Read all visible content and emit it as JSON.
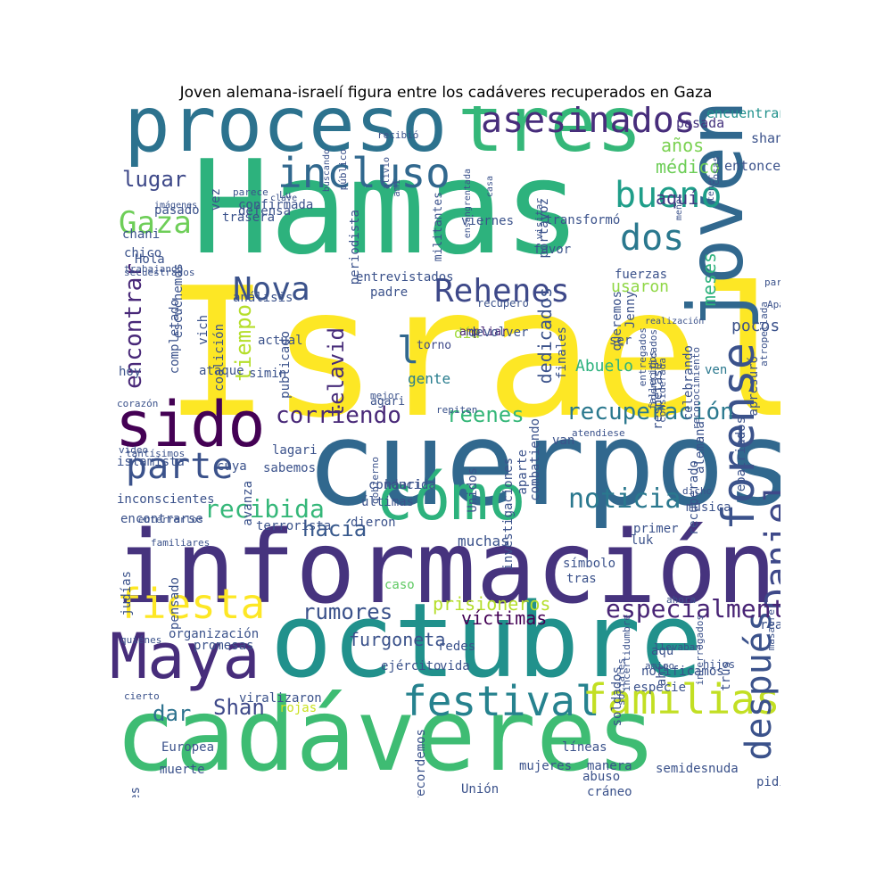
{
  "title": "Joven alemana-israelí figura entre los cadáveres recuperados en Gaza",
  "words": [
    {
      "text": "Israel",
      "color": "#fde725"
    },
    {
      "text": "Hamas",
      "color": "#2db27d"
    },
    {
      "text": "cuerpos",
      "color": "#31688e"
    },
    {
      "text": "información",
      "color": "#46337e"
    },
    {
      "text": "octubre",
      "color": "#21918c"
    },
    {
      "text": "cadáveres",
      "color": "#3ebc73"
    },
    {
      "text": "proceso",
      "color": "#2c728e"
    },
    {
      "text": "tres",
      "color": "#35b779"
    },
    {
      "text": "joven",
      "color": "#31688e"
    },
    {
      "text": "Maya",
      "color": "#472d7b"
    },
    {
      "text": "sido",
      "color": "#440154"
    },
    {
      "text": "cómo",
      "color": "#2db27d"
    },
    {
      "text": "fiesta",
      "color": "#fde725"
    },
    {
      "text": "forense",
      "color": "#3b528b"
    },
    {
      "text": "Daniel",
      "color": "#3e4989"
    },
    {
      "text": "asesinados",
      "color": "#472d7b"
    },
    {
      "text": "incluso",
      "color": "#31688e"
    },
    {
      "text": "festival",
      "color": "#26828e"
    },
    {
      "text": "familias",
      "color": "#c2df23"
    },
    {
      "text": "después",
      "color": "#3b528b"
    },
    {
      "text": "parte",
      "color": "#3b528b"
    },
    {
      "text": "bueno",
      "color": "#1f9e89"
    },
    {
      "text": "dos",
      "color": "#2a788e"
    },
    {
      "text": "Rehenes",
      "color": "#3e4989"
    },
    {
      "text": "Nova",
      "color": "#3b528b"
    },
    {
      "text": "Gaza",
      "color": "#6ece58"
    },
    {
      "text": "noticia",
      "color": "#2a788e"
    },
    {
      "text": "recibida",
      "color": "#35b779"
    },
    {
      "text": "especialmente",
      "color": "#482475"
    },
    {
      "text": "recuperación",
      "color": "#2a788e"
    },
    {
      "text": "corriendo",
      "color": "#482878"
    },
    {
      "text": "encontrar",
      "color": "#482878"
    },
    {
      "text": "lugar",
      "color": "#3e4989"
    },
    {
      "text": "hacía",
      "color": "#38598c"
    },
    {
      "text": "reenes",
      "color": "#35b779"
    },
    {
      "text": "tiempo",
      "color": "#b5de2b"
    },
    {
      "text": "telavid",
      "color": "#472c7a"
    },
    {
      "text": "rumores",
      "color": "#3b528b"
    },
    {
      "text": "Shan",
      "color": "#3e4989"
    },
    {
      "text": "dar",
      "color": "#2c728e"
    },
    {
      "text": "l",
      "color": "#31688e"
    },
    {
      "text": "prisioneros",
      "color": "#b5de2b"
    },
    {
      "text": "víctimas",
      "color": "#440154"
    },
    {
      "text": "furgoneta",
      "color": "#3b528b"
    },
    {
      "text": "dedicados",
      "color": "#3b528b"
    },
    {
      "text": "aquí",
      "color": "#443983"
    },
    {
      "text": "médico",
      "color": "#6ece58"
    },
    {
      "text": "años",
      "color": "#7ad151"
    },
    {
      "text": "pasada",
      "color": "#46337e"
    },
    {
      "text": "encuentran",
      "color": "#21918c"
    },
    {
      "text": "shani",
      "color": "#3b528b"
    },
    {
      "text": "entonces",
      "color": "#3b528b"
    },
    {
      "text": "Abuelo",
      "color": "#2db27d"
    },
    {
      "text": "gente",
      "color": "#287d8e"
    },
    {
      "text": "día",
      "color": "#a0da39"
    },
    {
      "text": "torno",
      "color": "#3e4989"
    },
    {
      "text": "ampliar",
      "color": "#482475"
    },
    {
      "text": "meses",
      "color": "#2db27d"
    },
    {
      "text": "usaron",
      "color": "#8fd744"
    },
    {
      "text": "fuerzas",
      "color": "#3b528b"
    },
    {
      "text": "pocos",
      "color": "#3b528b"
    },
    {
      "text": "ven",
      "color": "#2a788e"
    },
    {
      "text": "organización",
      "color": "#3b528b"
    },
    {
      "text": "promesas",
      "color": "#3b528b"
    },
    {
      "text": "viralizaron",
      "color": "#3b528b"
    },
    {
      "text": "rojas",
      "color": "#cae11f"
    },
    {
      "text": "muchas",
      "color": "#3b528b"
    },
    {
      "text": "luk",
      "color": "#3b528b"
    },
    {
      "text": "tras",
      "color": "#3b528b"
    },
    {
      "text": "caso",
      "color": "#5ec962"
    },
    {
      "text": "primer",
      "color": "#3b528b"
    },
    {
      "text": "símbolo",
      "color": "#3b528b"
    },
    {
      "text": "música",
      "color": "#3b528b"
    },
    {
      "text": "redes",
      "color": "#3b528b"
    },
    {
      "text": "ejército",
      "color": "#3b528b"
    },
    {
      "text": "vida",
      "color": "#3b528b"
    },
    {
      "text": "aqu",
      "color": "#3b528b"
    },
    {
      "text": "ahí",
      "color": "#3b528b"
    },
    {
      "text": "amigo",
      "color": "#3b528b"
    },
    {
      "text": "especie",
      "color": "#3b528b"
    },
    {
      "text": "realidad",
      "color": "#3b528b"
    },
    {
      "text": "hijos",
      "color": "#3b528b"
    },
    {
      "text": "líneas",
      "color": "#3b528b"
    },
    {
      "text": "mujeres",
      "color": "#3b528b"
    },
    {
      "text": "manera",
      "color": "#3b528b"
    },
    {
      "text": "abuso",
      "color": "#3b528b"
    },
    {
      "text": "cráneo",
      "color": "#3b528b"
    },
    {
      "text": "semidesnuda",
      "color": "#3b528b"
    },
    {
      "text": "Unión",
      "color": "#3b528b"
    },
    {
      "text": "pidió",
      "color": "#3b528b"
    },
    {
      "text": "Europea",
      "color": "#3b528b"
    },
    {
      "text": "muerte",
      "color": "#3b528b"
    },
    {
      "text": "informaciones",
      "color": "#3b528b"
    },
    {
      "text": "recordemos",
      "color": "#3b528b"
    },
    {
      "text": "profesionales",
      "color": "#3b528b"
    },
    {
      "text": "cierto",
      "color": "#3b528b"
    },
    {
      "text": "quiénes",
      "color": "#3b528b"
    },
    {
      "text": "sabemos",
      "color": "#3b528b"
    },
    {
      "text": "lagari",
      "color": "#3b528b"
    },
    {
      "text": "haari",
      "color": "#3b528b"
    },
    {
      "text": "conducida",
      "color": "#3b528b"
    },
    {
      "text": "últimas",
      "color": "#3b528b"
    },
    {
      "text": "dieron",
      "color": "#3b528b"
    },
    {
      "text": "terrorista",
      "color": "#3b528b"
    },
    {
      "text": "pensado",
      "color": "#3b528b"
    },
    {
      "text": "judías",
      "color": "#3b528b"
    },
    {
      "text": "familiares",
      "color": "#3b528b"
    },
    {
      "text": "encontrarse",
      "color": "#3b528b"
    },
    {
      "text": "enterrarlos",
      "color": "#3b528b"
    },
    {
      "text": "inconscientes",
      "color": "#3b528b"
    },
    {
      "text": "islamista",
      "color": "#3b528b"
    },
    {
      "text": "tantísimos",
      "color": "#3b528b"
    },
    {
      "text": "video",
      "color": "#3b528b"
    },
    {
      "text": "cuya",
      "color": "#3b528b"
    },
    {
      "text": "avanza",
      "color": "#3b528b"
    },
    {
      "text": "gobierno",
      "color": "#3b528b"
    },
    {
      "text": "agari",
      "color": "#3b528b"
    },
    {
      "text": "repiten",
      "color": "#3b528b"
    },
    {
      "text": "mejor",
      "color": "#3b528b"
    },
    {
      "text": "corazón",
      "color": "#3b528b"
    },
    {
      "text": "hoy",
      "color": "#3b528b"
    },
    {
      "text": "ataque",
      "color": "#3b528b"
    },
    {
      "text": "simin",
      "color": "#3b528b"
    },
    {
      "text": "actual",
      "color": "#3b528b"
    },
    {
      "text": "publicado",
      "color": "#3b528b"
    },
    {
      "text": "coalición",
      "color": "#3b528b"
    },
    {
      "text": "vich",
      "color": "#3b528b"
    },
    {
      "text": "completado",
      "color": "#3b528b"
    },
    {
      "text": "escuchemos",
      "color": "#3b528b"
    },
    {
      "text": "entrevistados",
      "color": "#3b528b"
    },
    {
      "text": "padre",
      "color": "#3b528b"
    },
    {
      "text": "análisis",
      "color": "#3b528b"
    },
    {
      "text": "devolver",
      "color": "#3b528b"
    },
    {
      "text": "recuperó",
      "color": "#3b528b"
    },
    {
      "text": "finales",
      "color": "#3b528b"
    },
    {
      "text": "ser",
      "color": "#3b528b"
    },
    {
      "text": "queremos",
      "color": "#3b528b"
    },
    {
      "text": "Jenny",
      "color": "#3b528b"
    },
    {
      "text": "favor",
      "color": "#3b528b"
    },
    {
      "text": "viernes",
      "color": "#3b528b"
    },
    {
      "text": "transformó",
      "color": "#3b528b"
    },
    {
      "text": "periodista",
      "color": "#3b528b"
    },
    {
      "text": "militantes",
      "color": "#3b528b"
    },
    {
      "text": "portavoz",
      "color": "#3b528b"
    },
    {
      "text": "defensa",
      "color": "#3b528b"
    },
    {
      "text": "chani",
      "color": "#3b528b"
    },
    {
      "text": "Hola",
      "color": "#3b528b"
    },
    {
      "text": "chico",
      "color": "#3b528b"
    },
    {
      "text": "trasera",
      "color": "#3b528b"
    },
    {
      "text": "confirmada",
      "color": "#3b528b"
    },
    {
      "text": "vez",
      "color": "#3b528b"
    },
    {
      "text": "secuestrados",
      "color": "#3b528b"
    },
    {
      "text": "trabajando",
      "color": "#3b528b"
    },
    {
      "text": "parece",
      "color": "#3b528b"
    },
    {
      "text": "pasado",
      "color": "#3b528b"
    },
    {
      "text": "imágenes",
      "color": "#3b528b"
    },
    {
      "text": "clave",
      "color": "#3b528b"
    },
    {
      "text": "Lu",
      "color": "#3b528b"
    },
    {
      "text": "ami",
      "color": "#3b528b"
    },
    {
      "text": "público",
      "color": "#3b528b"
    },
    {
      "text": "recibió",
      "color": "#3b528b"
    },
    {
      "text": "buscando",
      "color": "#3b528b"
    },
    {
      "text": "alivio",
      "color": "#3b528b"
    },
    {
      "text": "ensangrentada",
      "color": "#3b528b"
    },
    {
      "text": "casa",
      "color": "#3b528b"
    },
    {
      "text": "visitar",
      "color": "#3b528b"
    },
    {
      "text": "menos",
      "color": "#3b528b"
    },
    {
      "text": "cosas",
      "color": "#3b528b"
    },
    {
      "text": "tener",
      "color": "#3b528b"
    },
    {
      "text": "participantes",
      "color": "#3b528b"
    },
    {
      "text": "Aparentemente",
      "color": "#3b528b"
    },
    {
      "text": "atropellada",
      "color": "#3b528b"
    },
    {
      "text": "reconocimiento",
      "color": "#3b528b"
    },
    {
      "text": "considerada",
      "color": "#3b528b"
    },
    {
      "text": "fallecidos",
      "color": "#3b528b"
    },
    {
      "text": "identificados",
      "color": "#3b528b"
    },
    {
      "text": "realización",
      "color": "#3b528b"
    },
    {
      "text": "entregados",
      "color": "#3b528b"
    },
    {
      "text": "respetase",
      "color": "#3b528b"
    },
    {
      "text": "celebrando",
      "color": "#3b528b"
    },
    {
      "text": "apresuró",
      "color": "#3b528b"
    },
    {
      "text": "repatriados",
      "color": "#3b528b"
    },
    {
      "text": "alemana",
      "color": "#3b528b"
    },
    {
      "text": "recuperado",
      "color": "#3b528b"
    },
    {
      "text": "Unidos",
      "color": "#3b528b"
    },
    {
      "text": "combatiendo",
      "color": "#3b528b"
    },
    {
      "text": "aparte",
      "color": "#3b528b"
    },
    {
      "text": "investigaciones",
      "color": "#3b528b"
    },
    {
      "text": "van",
      "color": "#3b528b"
    },
    {
      "text": "atendiese",
      "color": "#3b528b"
    },
    {
      "text": "ahora",
      "color": "#3b528b"
    },
    {
      "text": "dicho",
      "color": "#3b528b"
    },
    {
      "text": "incertidumbre",
      "color": "#3b528b"
    },
    {
      "text": "interrogados",
      "color": "#3b528b"
    },
    {
      "text": "notificamos",
      "color": "#3b528b"
    },
    {
      "text": "sociales",
      "color": "#3b528b"
    },
    {
      "text": "masacre",
      "color": "#3b528b"
    },
    {
      "text": "llevaban",
      "color": "#3b528b"
    },
    {
      "text": "trus",
      "color": "#3b528b"
    },
    {
      "text": "soldados",
      "color": "#3b528b"
    }
  ]
}
